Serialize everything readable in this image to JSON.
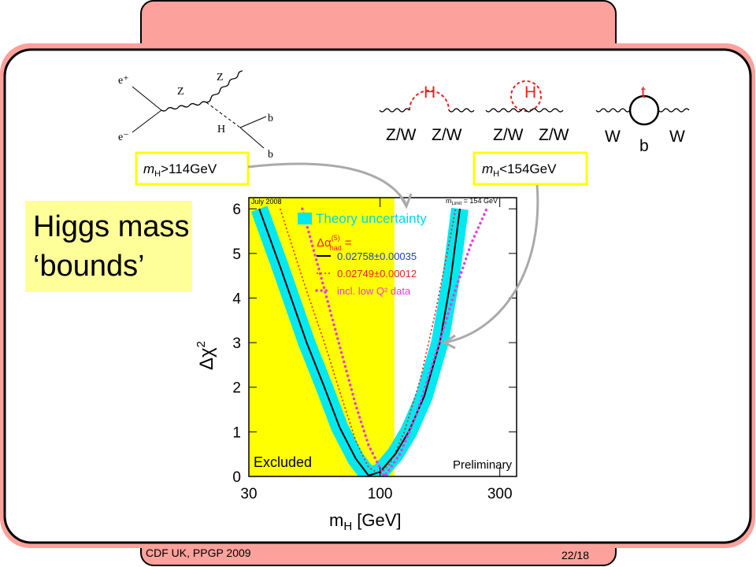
{
  "slide": {
    "box_lines": [
      "Higgs mass",
      "‘bounds’"
    ],
    "footer_left": "CDF UK, PPGP 2009",
    "footer_right": "22/18"
  },
  "callouts": [
    {
      "m": "m",
      "sub": "H",
      "text": ">114GeV"
    },
    {
      "m": "m",
      "sub": "H",
      "text": "<154GeV"
    }
  ],
  "feynman": {
    "e_plus": "e⁺",
    "e_minus": "e⁻",
    "z_left": "Z",
    "z_right": "Z",
    "h": "H",
    "b_top": "b",
    "b_bottom": "b"
  },
  "loops": [
    {
      "top": "H",
      "left": "Z/W",
      "right": "Z/W"
    },
    {
      "top": "H",
      "left": "Z/W",
      "right": "Z/W"
    },
    {
      "top": "t",
      "left": "W",
      "bottom": "b",
      "right": "W"
    }
  ],
  "chart_data": {
    "type": "line",
    "xscale": "log",
    "xlim": [
      30,
      350
    ],
    "ylim": [
      0,
      6.25
    ],
    "xticks": [
      30,
      100,
      300
    ],
    "yticks": [
      0,
      1,
      2,
      3,
      4,
      5,
      6
    ],
    "xlabel": [
      "m",
      "H",
      " [GeV]"
    ],
    "ylabel": [
      "Δχ",
      "2"
    ],
    "excluded_max": 114,
    "excluded_color": "#ffff00",
    "annotations": {
      "date": "July 2008",
      "limit": [
        "m",
        "Limit",
        " = 154 GeV"
      ],
      "excluded": "Excluded",
      "preliminary": "Preliminary"
    },
    "legend_heading": [
      "Δα",
      "(5)",
      "had",
      " ="
    ],
    "series": [
      {
        "name": "Theory uncertainty",
        "color": "#00e8f0",
        "text_color": "#00d8e8",
        "style": "band",
        "x": [
          33,
          40,
          51,
          60,
          69,
          80,
          90,
          100,
          115,
          130,
          150,
          173,
          190,
          208
        ],
        "values": [
          6,
          4.7,
          3.0,
          2.0,
          1.1,
          0.4,
          0.02,
          0.1,
          0.5,
          1.0,
          1.8,
          3.0,
          4.3,
          6
        ]
      },
      {
        "name": "0.02758±0.00035",
        "color": "#000000",
        "text_color": "#1f3fc2",
        "style": "solid",
        "x": [
          33,
          40,
          51,
          60,
          69,
          80,
          90,
          100,
          115,
          130,
          150,
          173,
          190,
          208
        ],
        "values": [
          6,
          4.7,
          3.0,
          2.0,
          1.1,
          0.4,
          0.02,
          0.1,
          0.5,
          1.0,
          1.8,
          3.0,
          4.3,
          6
        ]
      },
      {
        "name": "0.02749±0.00012",
        "color": "#e8231d",
        "text_color": "#e8231d",
        "style": "dotted",
        "x": [
          40,
          50,
          60,
          70,
          80,
          90,
          100,
          110,
          125,
          145,
          165,
          185,
          200
        ],
        "values": [
          6,
          4.3,
          3.0,
          1.8,
          0.8,
          0.2,
          0.05,
          0.3,
          1.0,
          2.2,
          3.6,
          5,
          6
        ]
      },
      {
        "name": "incl. low Q² data",
        "color": "#e43de0",
        "text_color": "#e43de0",
        "style": "dotted-bold",
        "x": [
          49,
          60,
          70,
          80,
          90,
          104,
          120,
          140,
          170,
          200,
          230,
          266
        ],
        "values": [
          6,
          4.2,
          2.8,
          1.6,
          0.7,
          0,
          0.5,
          1.4,
          2.9,
          4.2,
          5.2,
          6
        ]
      }
    ]
  }
}
